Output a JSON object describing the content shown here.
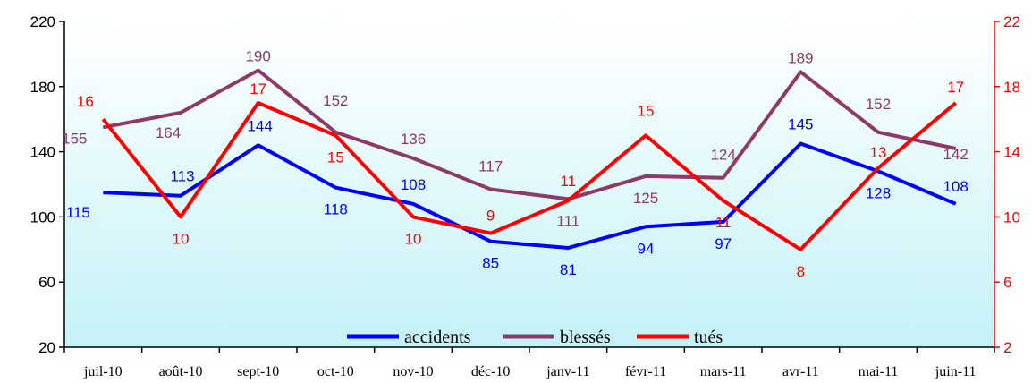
{
  "chart_data": {
    "type": "line",
    "title": "",
    "categories": [
      "juil-10",
      "août-10",
      "sept-10",
      "oct-10",
      "nov-10",
      "déc-10",
      "janv-11",
      "févr-11",
      "mars-11",
      "avr-11",
      "mai-11",
      "juin-11"
    ],
    "y_left": {
      "ylim": [
        20,
        220
      ],
      "ticks": [
        20,
        60,
        100,
        140,
        180,
        220
      ]
    },
    "y_right": {
      "ylim": [
        2,
        22
      ],
      "ticks": [
        2,
        6,
        10,
        14,
        18,
        22
      ]
    },
    "series": [
      {
        "name": "accidents",
        "axis": "left",
        "color": "#0000ff",
        "label_color": "#0000ff",
        "values": [
          115,
          113,
          144,
          118,
          108,
          85,
          81,
          94,
          97,
          145,
          128,
          108
        ]
      },
      {
        "name": "blessés",
        "axis": "left",
        "color": "#8e3a68",
        "label_color": "#8e3a68",
        "values": [
          155,
          164,
          190,
          152,
          136,
          117,
          111,
          125,
          124,
          189,
          152,
          142
        ]
      },
      {
        "name": "tués",
        "axis": "right",
        "color": "#ff0000",
        "label_color": "#ff0000",
        "values": [
          16,
          10,
          17,
          15,
          10,
          9,
          11,
          15,
          11,
          8,
          13,
          17
        ]
      }
    ],
    "legend_position": "bottom-center",
    "grid": false,
    "background": "gradient white to light cyan"
  }
}
